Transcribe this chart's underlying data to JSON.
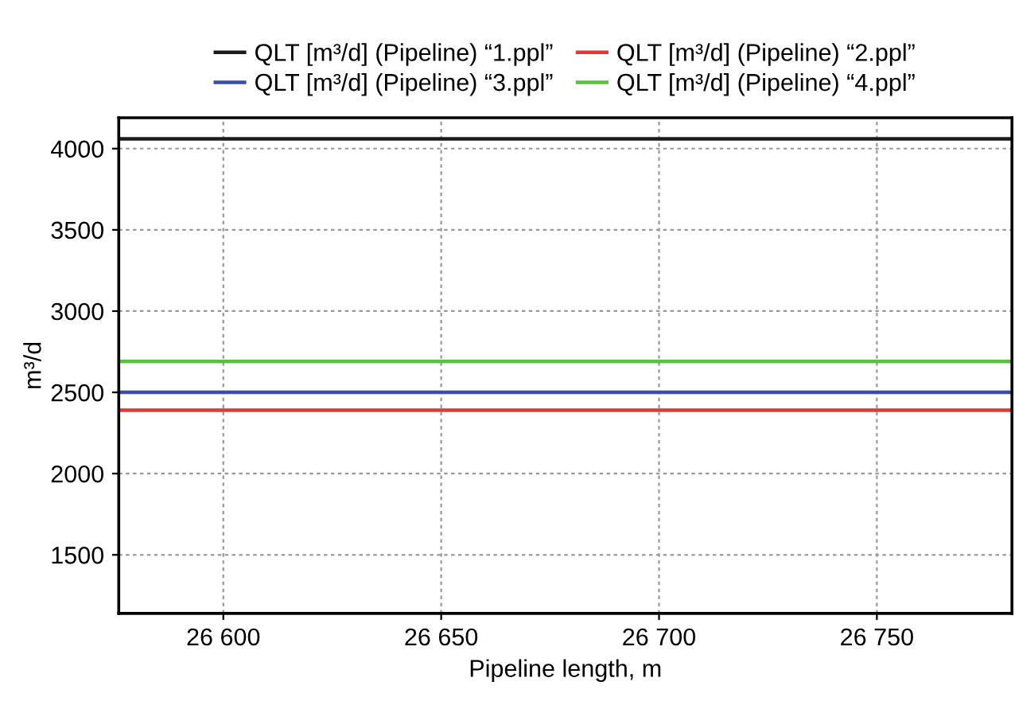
{
  "chart_data": {
    "type": "line",
    "xlabel": "Pipeline length, m",
    "ylabel": "m³/d",
    "ref_lines": [
      {
        "axis": "y",
        "value": 4060,
        "label": "QLT [m³/d] (Pipeline) “1.ppl”",
        "color": "#1a1a1a",
        "line_style": "solid"
      },
      {
        "axis": "y",
        "value": 2390,
        "label": "QLT [m³/d] (Pipeline) “2.ppl”",
        "color": "#e8333a",
        "line_style": "solid"
      },
      {
        "axis": "y",
        "value": 2500,
        "label": "QLT [m³/d] (Pipeline) “3.ppl”",
        "color": "#3a4ea8",
        "line_style": "solid"
      },
      {
        "axis": "y",
        "value": 2690,
        "label": "QLT [m³/d] (Pipeline) “4.ppl”",
        "color": "#5cbf3f",
        "line_style": "solid"
      }
    ],
    "xlim": [
      26576,
      26781
    ],
    "xticks": [
      {
        "value": 26600,
        "label": "26 600"
      },
      {
        "value": 26650,
        "label": "26 650"
      },
      {
        "value": 26700,
        "label": "26 700"
      },
      {
        "value": 26750,
        "label": "26 750"
      }
    ],
    "ylim": [
      1140,
      4190
    ],
    "yticks": [
      1500,
      2000,
      2500,
      3000,
      3500,
      4000
    ],
    "grid": true,
    "legend": "top"
  }
}
